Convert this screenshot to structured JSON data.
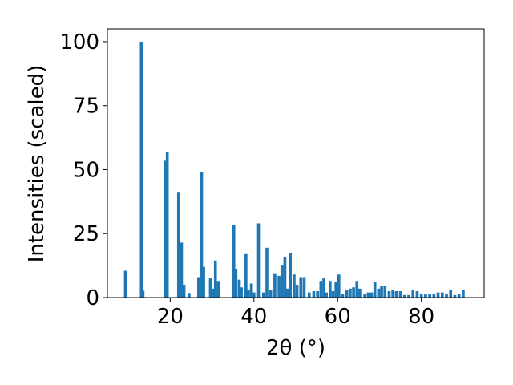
{
  "chart_data": {
    "type": "bar",
    "xlabel": "2θ (°)",
    "ylabel": "Intensities (scaled)",
    "xlim": [
      5,
      95
    ],
    "ylim": [
      0,
      105
    ],
    "grid": false,
    "color": "#1f77b4",
    "bar_width": 0.7,
    "x_ticks": [
      20,
      40,
      60,
      80
    ],
    "y_ticks": [
      0,
      25,
      50,
      75,
      100
    ],
    "x": [
      9.3,
      13.1,
      13.5,
      18.8,
      19.3,
      22.0,
      22.7,
      23.3,
      24.5,
      26.8,
      27.5,
      28.0,
      29.6,
      30.2,
      30.8,
      31.5,
      35.2,
      35.7,
      36.5,
      37.0,
      38.1,
      38.7,
      39.4,
      40.0,
      41.1,
      42.3,
      43.1,
      44.0,
      45.0,
      46.0,
      46.7,
      47.4,
      48.0,
      48.7,
      49.6,
      50.3,
      51.2,
      52.0,
      53.2,
      54.3,
      55.2,
      56.0,
      56.7,
      57.3,
      58.2,
      58.9,
      59.6,
      60.3,
      61.2,
      62.2,
      63.0,
      63.8,
      64.6,
      65.3,
      66.5,
      67.3,
      68.1,
      68.9,
      69.8,
      70.5,
      71.3,
      72.3,
      73.2,
      74.0,
      75.0,
      76.0,
      77.0,
      78.0,
      79.0,
      80.0,
      81.0,
      82.0,
      83.0,
      84.0,
      85.0,
      86.0,
      87.0,
      88.0,
      89.0,
      90.0
    ],
    "values": [
      10.5,
      100.0,
      2.7,
      53.5,
      57.0,
      41.0,
      21.5,
      5.0,
      1.8,
      8.0,
      49.0,
      12.0,
      7.5,
      3.5,
      14.5,
      6.5,
      28.5,
      11.0,
      7.0,
      4.0,
      17.0,
      3.0,
      5.5,
      2.0,
      29.0,
      2.0,
      19.5,
      3.0,
      9.5,
      8.5,
      12.5,
      16.0,
      3.5,
      17.5,
      9.0,
      5.0,
      8.0,
      8.0,
      2.0,
      2.5,
      2.5,
      6.5,
      7.5,
      2.0,
      6.5,
      2.5,
      6.0,
      9.0,
      1.5,
      3.0,
      3.5,
      4.0,
      6.5,
      3.5,
      1.5,
      2.0,
      2.0,
      6.0,
      3.5,
      4.5,
      4.5,
      2.5,
      3.0,
      2.5,
      2.5,
      1.0,
      1.0,
      3.0,
      2.5,
      1.5,
      1.5,
      1.5,
      1.5,
      2.0,
      2.0,
      1.5,
      3.0,
      1.0,
      1.5,
      3.0
    ]
  }
}
